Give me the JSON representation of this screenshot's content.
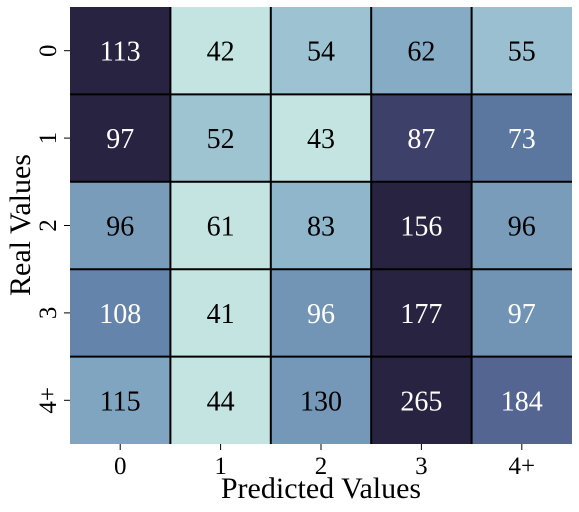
{
  "chart_data": {
    "type": "heatmap",
    "title": "",
    "xlabel": "Predicted Values",
    "ylabel": "Real Values",
    "x_categories": [
      "0",
      "1",
      "2",
      "3",
      "4+"
    ],
    "y_categories": [
      "0",
      "1",
      "2",
      "3",
      "4+"
    ],
    "values": [
      [
        113,
        42,
        54,
        62,
        55
      ],
      [
        97,
        52,
        43,
        87,
        73
      ],
      [
        96,
        61,
        83,
        156,
        96
      ],
      [
        108,
        41,
        96,
        177,
        97
      ],
      [
        115,
        44,
        130,
        265,
        184
      ]
    ],
    "color_scale": "row-normalized",
    "colors": {
      "low": "#c4e4e2",
      "mid_low": "#8bb2c9",
      "mid": "#6383aa",
      "mid_high": "#454b79",
      "high": "#282341",
      "grid_line": "#000000"
    },
    "grid": true,
    "colorbar": false
  }
}
